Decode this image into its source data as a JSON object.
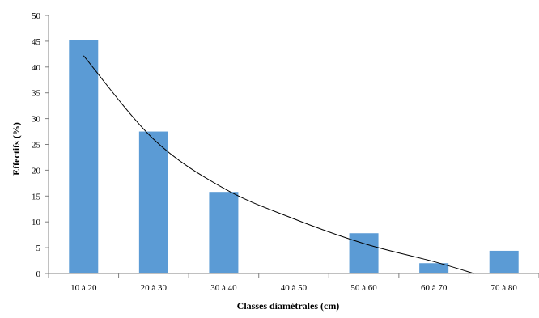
{
  "chart_data": {
    "type": "bar",
    "categories": [
      "10 à 20",
      "20 à 30",
      "30 à 40",
      "40 à 50",
      "50 à 60",
      "60 à 70",
      "70 à 80"
    ],
    "values": [
      45.2,
      27.5,
      15.8,
      0,
      7.8,
      2.0,
      4.4
    ],
    "trendline": {
      "type": "exponential",
      "points": [
        {
          "x": "10 à 20",
          "y": 42.2
        },
        {
          "x": "20 à 30",
          "y": 26.0
        },
        {
          "x": "30 à 40",
          "y": 16.5
        },
        {
          "x": "40 à 50",
          "y": 10.6
        },
        {
          "x": "50 à 60",
          "y": 5.8
        },
        {
          "x": "60 à 70",
          "y": 2.3
        },
        {
          "x_end_between": [
            "60 à 70",
            "70 à 80"
          ],
          "y": 0
        }
      ]
    },
    "title": "",
    "xlabel": "Classes diamétrales  (cm)",
    "ylabel": "Effectifs (%)",
    "ylim": [
      0,
      50
    ],
    "yticks": [
      0,
      5,
      10,
      15,
      20,
      25,
      30,
      35,
      40,
      45,
      50
    ],
    "grid": false,
    "legend": "none",
    "colors": {
      "bar": "#5b9bd5",
      "trendline": "#000000",
      "axis": "#808080"
    }
  }
}
